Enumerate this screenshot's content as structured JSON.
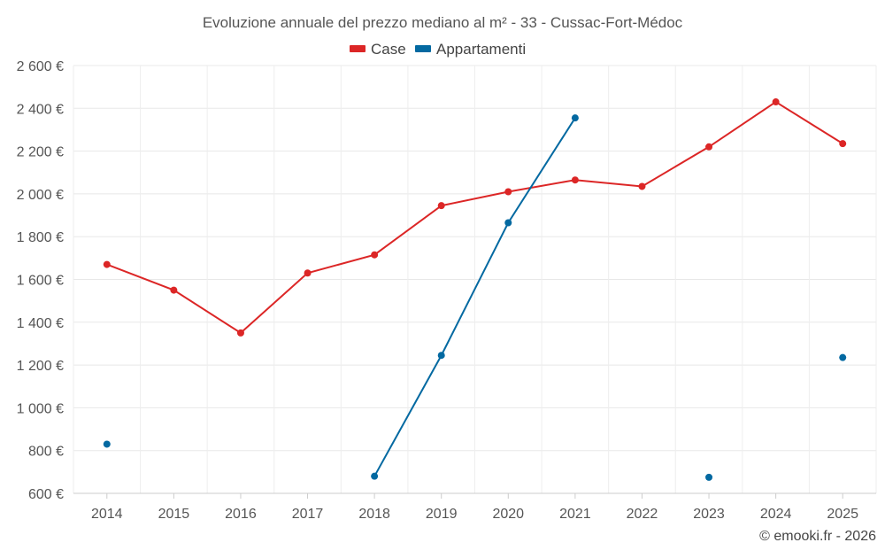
{
  "chart_data": {
    "type": "line",
    "title": "Evoluzione annuale del prezzo mediano al m² - 33 - Cussac-Fort-Médoc",
    "xlabel": "",
    "ylabel": "",
    "categories": [
      "2014",
      "2015",
      "2016",
      "2017",
      "2018",
      "2019",
      "2020",
      "2021",
      "2022",
      "2023",
      "2024",
      "2025"
    ],
    "ylim": [
      600,
      2600
    ],
    "yticks": [
      600,
      800,
      1000,
      1200,
      1400,
      1600,
      1800,
      2000,
      2200,
      2400,
      2600
    ],
    "ytick_labels": [
      "600 €",
      "800 €",
      "1 000 €",
      "1 200 €",
      "1 400 €",
      "1 600 €",
      "1 800 €",
      "2 000 €",
      "2 200 €",
      "2 400 €",
      "2 600 €"
    ],
    "grid": true,
    "legend_position": "top-center",
    "series": [
      {
        "name": "Case",
        "color": "#dc2626",
        "values": [
          1670,
          1550,
          1350,
          1630,
          1715,
          1945,
          2010,
          2065,
          2035,
          2220,
          2430,
          2235
        ]
      },
      {
        "name": "Appartamenti",
        "color": "#0369a1",
        "values": [
          830,
          null,
          null,
          null,
          680,
          1245,
          1865,
          2355,
          null,
          675,
          null,
          1235
        ]
      }
    ],
    "footer": "© emooki.fr - 2026"
  }
}
